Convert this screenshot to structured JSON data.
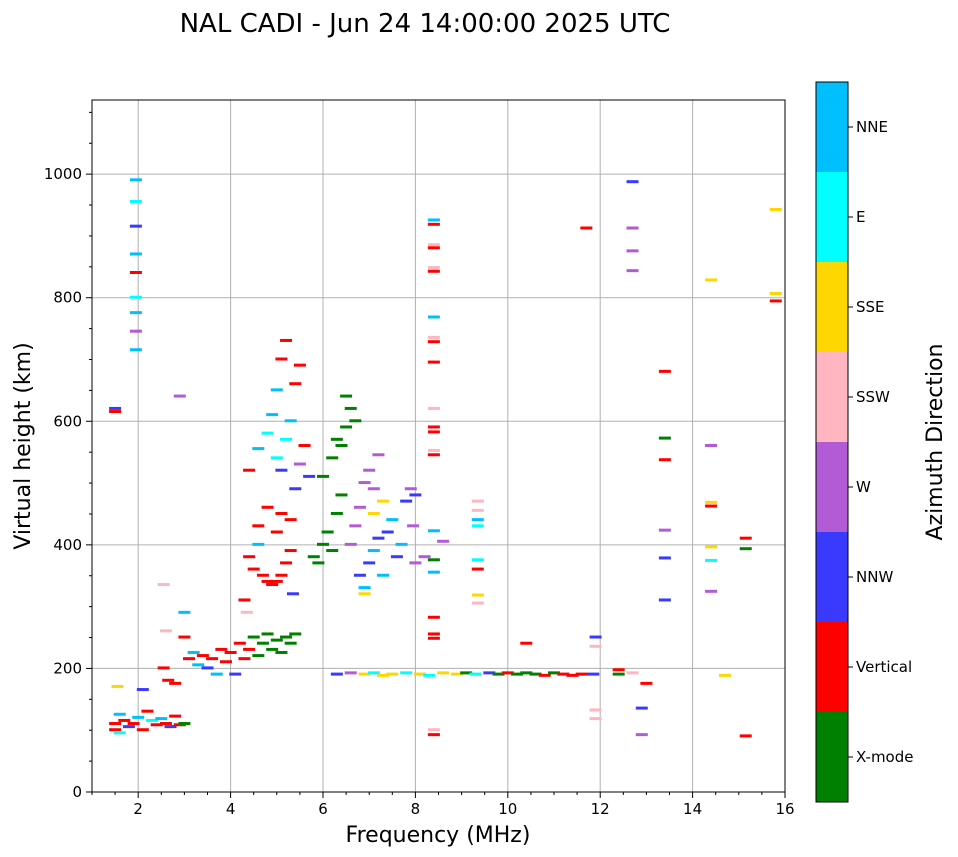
{
  "chart_data": {
    "type": "scatter",
    "title": "NAL CADI - Jun 24 14:00:00 2025 UTC",
    "xlabel": "Frequency (MHz)",
    "ylabel": "Virtual height (km)",
    "xlim": [
      1,
      16
    ],
    "ylim": [
      0,
      1120
    ],
    "xticks": [
      2,
      4,
      6,
      8,
      10,
      12,
      14,
      16
    ],
    "yticks": [
      0,
      200,
      400,
      600,
      800,
      1000
    ],
    "grid": true,
    "colorbar": {
      "title": "Azimuth Direction",
      "categories": [
        "X-mode",
        "Vertical",
        "NNW",
        "W",
        "SSW",
        "SSE",
        "E",
        "NNE"
      ],
      "colors": [
        "#008000",
        "#ff0000",
        "#3a3aff",
        "#b35ad6",
        "#ffb6c1",
        "#ffd700",
        "#00ffff",
        "#00bfff"
      ]
    },
    "points": [
      {
        "f": 1.5,
        "h": 620,
        "c": 2
      },
      {
        "f": 1.5,
        "h": 615,
        "c": 1
      },
      {
        "f": 1.5,
        "h": 110,
        "c": 1
      },
      {
        "f": 1.5,
        "h": 100,
        "c": 1
      },
      {
        "f": 1.6,
        "h": 125,
        "c": 7
      },
      {
        "f": 1.6,
        "h": 95,
        "c": 6
      },
      {
        "f": 1.7,
        "h": 115,
        "c": 1
      },
      {
        "f": 1.8,
        "h": 105,
        "c": 2
      },
      {
        "f": 1.9,
        "h": 110,
        "c": 1
      },
      {
        "f": 2.0,
        "h": 120,
        "c": 7
      },
      {
        "f": 2.1,
        "h": 100,
        "c": 1
      },
      {
        "f": 2.2,
        "h": 130,
        "c": 1
      },
      {
        "f": 2.3,
        "h": 115,
        "c": 6
      },
      {
        "f": 2.4,
        "h": 108,
        "c": 1
      },
      {
        "f": 2.5,
        "h": 118,
        "c": 7
      },
      {
        "f": 2.6,
        "h": 110,
        "c": 1
      },
      {
        "f": 2.7,
        "h": 105,
        "c": 2
      },
      {
        "f": 2.8,
        "h": 122,
        "c": 1
      },
      {
        "f": 2.9,
        "h": 108,
        "c": 1
      },
      {
        "f": 3.0,
        "h": 110,
        "c": 0
      },
      {
        "f": 1.55,
        "h": 170,
        "c": 5
      },
      {
        "f": 2.1,
        "h": 165,
        "c": 2
      },
      {
        "f": 2.55,
        "h": 200,
        "c": 1
      },
      {
        "f": 2.65,
        "h": 180,
        "c": 1
      },
      {
        "f": 2.8,
        "h": 175,
        "c": 1
      },
      {
        "f": 2.6,
        "h": 260,
        "c": 4
      },
      {
        "f": 2.55,
        "h": 335,
        "c": 4
      },
      {
        "f": 2.9,
        "h": 640,
        "c": 3
      },
      {
        "f": 1.95,
        "h": 990,
        "c": 7
      },
      {
        "f": 1.95,
        "h": 955,
        "c": 6
      },
      {
        "f": 1.95,
        "h": 915,
        "c": 2
      },
      {
        "f": 1.95,
        "h": 870,
        "c": 7
      },
      {
        "f": 1.95,
        "h": 840,
        "c": 1
      },
      {
        "f": 1.95,
        "h": 800,
        "c": 6
      },
      {
        "f": 1.95,
        "h": 775,
        "c": 7
      },
      {
        "f": 1.95,
        "h": 745,
        "c": 3
      },
      {
        "f": 1.95,
        "h": 715,
        "c": 7
      },
      {
        "f": 3.0,
        "h": 290,
        "c": 7
      },
      {
        "f": 3.0,
        "h": 250,
        "c": 1
      },
      {
        "f": 3.1,
        "h": 215,
        "c": 1
      },
      {
        "f": 3.2,
        "h": 225,
        "c": 7
      },
      {
        "f": 3.3,
        "h": 205,
        "c": 7
      },
      {
        "f": 3.4,
        "h": 220,
        "c": 1
      },
      {
        "f": 3.5,
        "h": 200,
        "c": 2
      },
      {
        "f": 3.6,
        "h": 215,
        "c": 1
      },
      {
        "f": 3.7,
        "h": 190,
        "c": 7
      },
      {
        "f": 3.8,
        "h": 230,
        "c": 1
      },
      {
        "f": 3.9,
        "h": 210,
        "c": 1
      },
      {
        "f": 4.0,
        "h": 225,
        "c": 1
      },
      {
        "f": 4.1,
        "h": 190,
        "c": 2
      },
      {
        "f": 4.2,
        "h": 240,
        "c": 1
      },
      {
        "f": 4.3,
        "h": 215,
        "c": 1
      },
      {
        "f": 4.4,
        "h": 230,
        "c": 1
      },
      {
        "f": 4.5,
        "h": 250,
        "c": 0
      },
      {
        "f": 4.6,
        "h": 220,
        "c": 0
      },
      {
        "f": 4.7,
        "h": 240,
        "c": 0
      },
      {
        "f": 4.8,
        "h": 255,
        "c": 0
      },
      {
        "f": 4.9,
        "h": 230,
        "c": 0
      },
      {
        "f": 5.0,
        "h": 245,
        "c": 0
      },
      {
        "f": 5.1,
        "h": 225,
        "c": 0
      },
      {
        "f": 5.2,
        "h": 250,
        "c": 0
      },
      {
        "f": 5.3,
        "h": 240,
        "c": 0
      },
      {
        "f": 5.4,
        "h": 255,
        "c": 0
      },
      {
        "f": 4.3,
        "h": 310,
        "c": 1
      },
      {
        "f": 4.35,
        "h": 290,
        "c": 4
      },
      {
        "f": 4.4,
        "h": 380,
        "c": 1
      },
      {
        "f": 4.5,
        "h": 360,
        "c": 1
      },
      {
        "f": 4.6,
        "h": 400,
        "c": 7
      },
      {
        "f": 4.7,
        "h": 350,
        "c": 1
      },
      {
        "f": 4.8,
        "h": 340,
        "c": 1
      },
      {
        "f": 4.9,
        "h": 335,
        "c": 1
      },
      {
        "f": 5.0,
        "h": 340,
        "c": 1
      },
      {
        "f": 5.1,
        "h": 350,
        "c": 1
      },
      {
        "f": 5.2,
        "h": 370,
        "c": 1
      },
      {
        "f": 5.3,
        "h": 390,
        "c": 1
      },
      {
        "f": 5.35,
        "h": 320,
        "c": 2
      },
      {
        "f": 4.6,
        "h": 430,
        "c": 1
      },
      {
        "f": 4.8,
        "h": 460,
        "c": 1
      },
      {
        "f": 5.0,
        "h": 420,
        "c": 1
      },
      {
        "f": 5.1,
        "h": 450,
        "c": 1
      },
      {
        "f": 5.3,
        "h": 440,
        "c": 1
      },
      {
        "f": 4.4,
        "h": 520,
        "c": 1
      },
      {
        "f": 4.6,
        "h": 555,
        "c": 7
      },
      {
        "f": 4.8,
        "h": 580,
        "c": 6
      },
      {
        "f": 4.9,
        "h": 610,
        "c": 7
      },
      {
        "f": 5.0,
        "h": 540,
        "c": 6
      },
      {
        "f": 5.1,
        "h": 520,
        "c": 2
      },
      {
        "f": 5.2,
        "h": 570,
        "c": 6
      },
      {
        "f": 5.3,
        "h": 600,
        "c": 7
      },
      {
        "f": 5.4,
        "h": 490,
        "c": 2
      },
      {
        "f": 5.5,
        "h": 530,
        "c": 3
      },
      {
        "f": 5.6,
        "h": 560,
        "c": 1
      },
      {
        "f": 5.7,
        "h": 510,
        "c": 2
      },
      {
        "f": 5.1,
        "h": 700,
        "c": 1
      },
      {
        "f": 5.2,
        "h": 730,
        "c": 1
      },
      {
        "f": 5.0,
        "h": 650,
        "c": 7
      },
      {
        "f": 5.4,
        "h": 660,
        "c": 1
      },
      {
        "f": 5.5,
        "h": 690,
        "c": 1
      },
      {
        "f": 5.8,
        "h": 380,
        "c": 0
      },
      {
        "f": 5.9,
        "h": 370,
        "c": 0
      },
      {
        "f": 6.0,
        "h": 400,
        "c": 0
      },
      {
        "f": 6.1,
        "h": 420,
        "c": 0
      },
      {
        "f": 6.2,
        "h": 390,
        "c": 0
      },
      {
        "f": 6.3,
        "h": 450,
        "c": 0
      },
      {
        "f": 6.4,
        "h": 480,
        "c": 0
      },
      {
        "f": 6.0,
        "h": 510,
        "c": 0
      },
      {
        "f": 6.2,
        "h": 540,
        "c": 0
      },
      {
        "f": 6.4,
        "h": 560,
        "c": 0
      },
      {
        "f": 6.5,
        "h": 590,
        "c": 0
      },
      {
        "f": 6.6,
        "h": 620,
        "c": 0
      },
      {
        "f": 6.7,
        "h": 600,
        "c": 0
      },
      {
        "f": 6.5,
        "h": 640,
        "c": 0
      },
      {
        "f": 6.3,
        "h": 570,
        "c": 0
      },
      {
        "f": 6.6,
        "h": 400,
        "c": 3
      },
      {
        "f": 6.7,
        "h": 430,
        "c": 3
      },
      {
        "f": 6.8,
        "h": 460,
        "c": 3
      },
      {
        "f": 6.9,
        "h": 500,
        "c": 3
      },
      {
        "f": 7.0,
        "h": 520,
        "c": 3
      },
      {
        "f": 7.1,
        "h": 490,
        "c": 3
      },
      {
        "f": 7.2,
        "h": 545,
        "c": 3
      },
      {
        "f": 6.8,
        "h": 350,
        "c": 2
      },
      {
        "f": 6.9,
        "h": 330,
        "c": 7
      },
      {
        "f": 7.0,
        "h": 370,
        "c": 2
      },
      {
        "f": 7.1,
        "h": 390,
        "c": 7
      },
      {
        "f": 7.2,
        "h": 410,
        "c": 2
      },
      {
        "f": 7.3,
        "h": 350,
        "c": 7
      },
      {
        "f": 7.4,
        "h": 420,
        "c": 2
      },
      {
        "f": 7.5,
        "h": 440,
        "c": 7
      },
      {
        "f": 7.6,
        "h": 380,
        "c": 2
      },
      {
        "f": 7.7,
        "h": 400,
        "c": 7
      },
      {
        "f": 7.3,
        "h": 470,
        "c": 5
      },
      {
        "f": 7.1,
        "h": 450,
        "c": 5
      },
      {
        "f": 6.9,
        "h": 320,
        "c": 5
      },
      {
        "f": 7.8,
        "h": 470,
        "c": 2
      },
      {
        "f": 7.9,
        "h": 490,
        "c": 3
      },
      {
        "f": 7.95,
        "h": 430,
        "c": 3
      },
      {
        "f": 8.0,
        "h": 370,
        "c": 3
      },
      {
        "f": 8.0,
        "h": 480,
        "c": 2
      },
      {
        "f": 6.3,
        "h": 190,
        "c": 2
      },
      {
        "f": 6.6,
        "h": 192,
        "c": 3
      },
      {
        "f": 6.9,
        "h": 190,
        "c": 5
      },
      {
        "f": 7.1,
        "h": 192,
        "c": 6
      },
      {
        "f": 7.3,
        "h": 188,
        "c": 5
      },
      {
        "f": 7.5,
        "h": 190,
        "c": 5
      },
      {
        "f": 7.8,
        "h": 192,
        "c": 6
      },
      {
        "f": 8.1,
        "h": 190,
        "c": 5
      },
      {
        "f": 8.3,
        "h": 188,
        "c": 6
      },
      {
        "f": 8.6,
        "h": 192,
        "c": 5
      },
      {
        "f": 8.9,
        "h": 190,
        "c": 5
      },
      {
        "f": 9.1,
        "h": 192,
        "c": 0
      },
      {
        "f": 9.3,
        "h": 190,
        "c": 6
      },
      {
        "f": 9.6,
        "h": 192,
        "c": 2
      },
      {
        "f": 9.8,
        "h": 190,
        "c": 0
      },
      {
        "f": 10.0,
        "h": 192,
        "c": 1
      },
      {
        "f": 10.2,
        "h": 190,
        "c": 0
      },
      {
        "f": 10.4,
        "h": 192,
        "c": 0
      },
      {
        "f": 10.6,
        "h": 190,
        "c": 0
      },
      {
        "f": 10.8,
        "h": 188,
        "c": 1
      },
      {
        "f": 11.0,
        "h": 192,
        "c": 0
      },
      {
        "f": 11.2,
        "h": 190,
        "c": 1
      },
      {
        "f": 11.4,
        "h": 188,
        "c": 1
      },
      {
        "f": 11.6,
        "h": 190,
        "c": 1
      },
      {
        "f": 11.85,
        "h": 190,
        "c": 2
      },
      {
        "f": 12.4,
        "h": 190,
        "c": 0
      },
      {
        "f": 12.4,
        "h": 197,
        "c": 1
      },
      {
        "f": 12.7,
        "h": 192,
        "c": 4
      },
      {
        "f": 13.0,
        "h": 175,
        "c": 1
      },
      {
        "f": 12.9,
        "h": 135,
        "c": 2
      },
      {
        "f": 12.9,
        "h": 92,
        "c": 3
      },
      {
        "f": 11.9,
        "h": 132,
        "c": 4
      },
      {
        "f": 11.9,
        "h": 118,
        "c": 4
      },
      {
        "f": 11.9,
        "h": 250,
        "c": 2
      },
      {
        "f": 11.9,
        "h": 235,
        "c": 4
      },
      {
        "f": 10.4,
        "h": 240,
        "c": 1
      },
      {
        "f": 8.4,
        "h": 925,
        "c": 7
      },
      {
        "f": 8.4,
        "h": 918,
        "c": 1
      },
      {
        "f": 8.4,
        "h": 885,
        "c": 4
      },
      {
        "f": 8.4,
        "h": 880,
        "c": 1
      },
      {
        "f": 8.4,
        "h": 848,
        "c": 4
      },
      {
        "f": 8.4,
        "h": 842,
        "c": 1
      },
      {
        "f": 8.4,
        "h": 768,
        "c": 7
      },
      {
        "f": 8.4,
        "h": 735,
        "c": 4
      },
      {
        "f": 8.4,
        "h": 728,
        "c": 1
      },
      {
        "f": 8.4,
        "h": 695,
        "c": 1
      },
      {
        "f": 8.4,
        "h": 620,
        "c": 4
      },
      {
        "f": 8.4,
        "h": 590,
        "c": 1
      },
      {
        "f": 8.4,
        "h": 582,
        "c": 1
      },
      {
        "f": 8.4,
        "h": 552,
        "c": 4
      },
      {
        "f": 8.4,
        "h": 545,
        "c": 1
      },
      {
        "f": 8.4,
        "h": 422,
        "c": 7
      },
      {
        "f": 8.4,
        "h": 375,
        "c": 0
      },
      {
        "f": 8.4,
        "h": 355,
        "c": 7
      },
      {
        "f": 8.4,
        "h": 282,
        "c": 1
      },
      {
        "f": 8.4,
        "h": 255,
        "c": 1
      },
      {
        "f": 8.4,
        "h": 248,
        "c": 1
      },
      {
        "f": 8.4,
        "h": 100,
        "c": 4
      },
      {
        "f": 8.4,
        "h": 92,
        "c": 1
      },
      {
        "f": 8.6,
        "h": 405,
        "c": 3
      },
      {
        "f": 8.2,
        "h": 380,
        "c": 3
      },
      {
        "f": 9.35,
        "h": 470,
        "c": 4
      },
      {
        "f": 9.35,
        "h": 455,
        "c": 4
      },
      {
        "f": 9.35,
        "h": 440,
        "c": 7
      },
      {
        "f": 9.35,
        "h": 430,
        "c": 6
      },
      {
        "f": 9.35,
        "h": 375,
        "c": 6
      },
      {
        "f": 9.35,
        "h": 360,
        "c": 1
      },
      {
        "f": 9.35,
        "h": 318,
        "c": 5
      },
      {
        "f": 9.35,
        "h": 305,
        "c": 4
      },
      {
        "f": 11.7,
        "h": 912,
        "c": 1
      },
      {
        "f": 12.7,
        "h": 987,
        "c": 2
      },
      {
        "f": 12.7,
        "h": 912,
        "c": 3
      },
      {
        "f": 12.7,
        "h": 875,
        "c": 3
      },
      {
        "f": 12.7,
        "h": 843,
        "c": 3
      },
      {
        "f": 13.4,
        "h": 680,
        "c": 1
      },
      {
        "f": 13.4,
        "h": 572,
        "c": 0
      },
      {
        "f": 13.4,
        "h": 537,
        "c": 1
      },
      {
        "f": 13.4,
        "h": 423,
        "c": 3
      },
      {
        "f": 13.4,
        "h": 378,
        "c": 2
      },
      {
        "f": 13.4,
        "h": 310,
        "c": 2
      },
      {
        "f": 14.4,
        "h": 828,
        "c": 5
      },
      {
        "f": 14.4,
        "h": 560,
        "c": 3
      },
      {
        "f": 14.4,
        "h": 468,
        "c": 5
      },
      {
        "f": 14.4,
        "h": 462,
        "c": 1
      },
      {
        "f": 14.4,
        "h": 396,
        "c": 5
      },
      {
        "f": 14.4,
        "h": 374,
        "c": 6
      },
      {
        "f": 14.4,
        "h": 324,
        "c": 3
      },
      {
        "f": 14.7,
        "h": 188,
        "c": 5
      },
      {
        "f": 15.15,
        "h": 410,
        "c": 1
      },
      {
        "f": 15.15,
        "h": 393,
        "c": 0
      },
      {
        "f": 15.15,
        "h": 90,
        "c": 1
      },
      {
        "f": 15.8,
        "h": 942,
        "c": 5
      },
      {
        "f": 15.8,
        "h": 806,
        "c": 5
      },
      {
        "f": 15.8,
        "h": 794,
        "c": 1
      }
    ]
  }
}
